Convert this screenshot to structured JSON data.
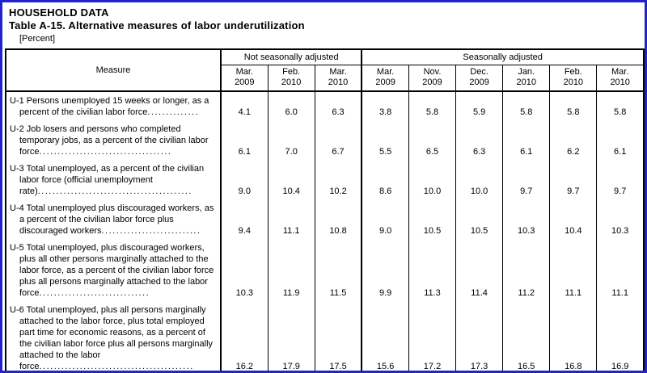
{
  "page": {
    "title_line1": "HOUSEHOLD DATA",
    "title_line2": "Table A-15. Alternative measures of labor underutilization",
    "unit_note": "[Percent]"
  },
  "colors": {
    "frame_border": "#2323cb",
    "table_border": "#000000",
    "text": "#000000",
    "background": "#ffffff"
  },
  "table": {
    "measure_header": "Measure",
    "groups": [
      {
        "label": "Not seasonally adjusted"
      },
      {
        "label": "Seasonally adjusted"
      }
    ],
    "columns": [
      {
        "month": "Mar.",
        "year": "2009"
      },
      {
        "month": "Feb.",
        "year": "2010"
      },
      {
        "month": "Mar.",
        "year": "2010"
      },
      {
        "month": "Mar.",
        "year": "2009"
      },
      {
        "month": "Nov.",
        "year": "2009"
      },
      {
        "month": "Dec.",
        "year": "2009"
      },
      {
        "month": "Jan.",
        "year": "2010"
      },
      {
        "month": "Feb.",
        "year": "2010"
      },
      {
        "month": "Mar.",
        "year": "2010"
      }
    ],
    "rows": [
      {
        "label": "U-1 Persons unemployed 15 weeks or longer, as a percent of the civilian labor force",
        "leader": "..............",
        "values": [
          "4.1",
          "6.0",
          "6.3",
          "3.8",
          "5.8",
          "5.9",
          "5.8",
          "5.8",
          "5.8"
        ]
      },
      {
        "label": "U-2 Job losers and persons who completed temporary jobs, as a percent of the civilian labor force",
        "leader": "....................................",
        "values": [
          "6.1",
          "7.0",
          "6.7",
          "5.5",
          "6.5",
          "6.3",
          "6.1",
          "6.2",
          "6.1"
        ]
      },
      {
        "label": "U-3 Total unemployed, as a percent of the civilian labor force (official unemployment rate)",
        "leader": "..........................................",
        "values": [
          "9.0",
          "10.4",
          "10.2",
          "8.6",
          "10.0",
          "10.0",
          "9.7",
          "9.7",
          "9.7"
        ]
      },
      {
        "label": "U-4 Total unemployed plus discouraged workers, as a percent of the civilian labor force plus discouraged workers",
        "leader": "...........................",
        "values": [
          "9.4",
          "11.1",
          "10.8",
          "9.0",
          "10.5",
          "10.5",
          "10.3",
          "10.4",
          "10.3"
        ]
      },
      {
        "label": "U-5 Total unemployed, plus discouraged workers, plus all other persons marginally attached to the labor force, as a percent of the civilian labor force plus all persons marginally attached to the labor force",
        "leader": "..............................",
        "values": [
          "10.3",
          "11.9",
          "11.5",
          "9.9",
          "11.3",
          "11.4",
          "11.2",
          "11.1",
          "11.1"
        ]
      },
      {
        "label": "U-6 Total unemployed, plus all persons marginally attached to the labor force, plus total employed part time for economic reasons, as a percent of the civilian labor force plus all persons marginally attached to the labor force",
        "leader": "..........................................",
        "values": [
          "16.2",
          "17.9",
          "17.5",
          "15.6",
          "17.2",
          "17.3",
          "16.5",
          "16.8",
          "16.9"
        ]
      }
    ]
  }
}
